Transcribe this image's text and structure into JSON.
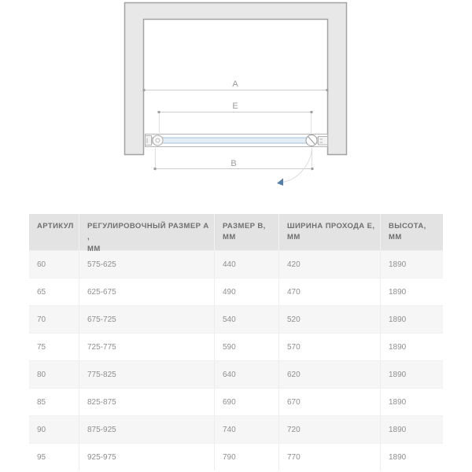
{
  "diagram": {
    "dim_labels": {
      "a": "A",
      "e": "E",
      "b": "B"
    },
    "colors": {
      "wall_fill": "#e8e8e8",
      "wall_border": "#a2a2a2",
      "dim_line": "#cccccc",
      "dim_marker": "#9f9f9f",
      "dim_text": "#9c9c9c",
      "rail_stroke": "#b5b5b5",
      "glass_fill": "#e3edf5",
      "glass_border": "#a8c3da",
      "swing_arc": "#dcdcdc",
      "arrow_blue": "#5180ae"
    }
  },
  "table": {
    "headers": [
      {
        "line1": "АРТИКУЛ",
        "line2": ""
      },
      {
        "line1": "РЕГУЛИРОВОЧНЫЙ РАЗМЕР А ,",
        "line2": "ММ"
      },
      {
        "line1": "РАЗМЕР В,",
        "line2": "ММ"
      },
      {
        "line1": "ШИРИНА ПРОХОДА Е,",
        "line2": "ММ"
      },
      {
        "line1": "ВЫСОТА,",
        "line2": "ММ"
      }
    ],
    "rows": [
      [
        "60",
        "575-625",
        "440",
        "420",
        "1890"
      ],
      [
        "65",
        "625-675",
        "490",
        "470",
        "1890"
      ],
      [
        "70",
        "675-725",
        "540",
        "520",
        "1890"
      ],
      [
        "75",
        "725-775",
        "590",
        "570",
        "1890"
      ],
      [
        "80",
        "775-825",
        "640",
        "620",
        "1890"
      ],
      [
        "85",
        "825-875",
        "690",
        "670",
        "1890"
      ],
      [
        "90",
        "875-925",
        "740",
        "720",
        "1890"
      ],
      [
        "95",
        "925-975",
        "790",
        "770",
        "1890"
      ]
    ]
  }
}
